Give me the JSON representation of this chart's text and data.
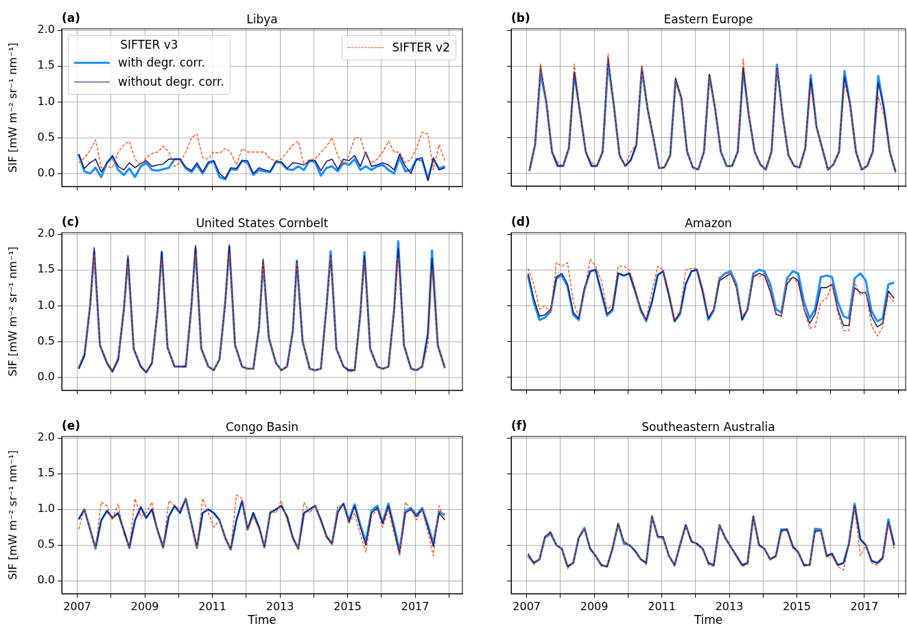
{
  "chart_data": [
    {
      "type": "line",
      "title": "Libya",
      "ylabel": "SIF [mW m⁻² sr⁻¹ nm⁻¹]",
      "annotations": [
        "(a)"
      ],
      "legend": "top left",
      "legend_title": "SIFTER v3",
      "grid": true,
      "tick_labels": "y",
      "xlim": [
        2006.54,
        2018.4
      ],
      "ylim": [
        -0.18,
        2.02
      ],
      "xticks": [
        2007,
        2008,
        2009,
        2010,
        2011,
        2012,
        2013,
        2014,
        2015,
        2016,
        2017,
        2018
      ],
      "yticks": [
        {
          "value": 0,
          "label": "0.0"
        },
        0.5,
        {
          "value": 1,
          "label": "1.0"
        },
        1.5,
        {
          "value": 2,
          "label": "2.0"
        }
      ],
      "x": [
        2007.04,
        2007.21,
        2007.38,
        2007.54,
        2007.71,
        2007.88,
        2008.04,
        2008.21,
        2008.38,
        2008.54,
        2008.71,
        2008.88,
        2009.04,
        2009.21,
        2009.38,
        2009.54,
        2009.71,
        2009.88,
        2010.04,
        2010.21,
        2010.38,
        2010.54,
        2010.71,
        2010.88,
        2011.04,
        2011.21,
        2011.38,
        2011.54,
        2011.71,
        2011.88,
        2012.04,
        2012.21,
        2012.38,
        2012.54,
        2012.71,
        2012.88,
        2013.04,
        2013.21,
        2013.38,
        2013.54,
        2013.71,
        2013.88,
        2014.04,
        2014.21,
        2014.38,
        2014.54,
        2014.71,
        2014.88,
        2015.04,
        2015.21,
        2015.38,
        2015.54,
        2015.71,
        2015.88,
        2016.04,
        2016.21,
        2016.38,
        2016.54,
        2016.71,
        2016.88,
        2017.04,
        2017.21,
        2017.38,
        2017.54,
        2017.71,
        2017.88
      ],
      "series": [
        {
          "name": "with degr. corr.",
          "color": "#1e90ff",
          "line_style": "solid",
          "values": [
            0.27,
            0.03,
            0.0,
            0.08,
            -0.05,
            0.15,
            0.23,
            0.05,
            -0.02,
            0.07,
            -0.05,
            0.1,
            0.15,
            0.05,
            0.04,
            0.06,
            0.08,
            0.2,
            0.2,
            0.07,
            0.02,
            0.12,
            0.0,
            0.14,
            0.17,
            -0.05,
            -0.08,
            0.06,
            0.05,
            0.18,
            0.15,
            -0.02,
            0.05,
            0.03,
            0.02,
            0.16,
            0.15,
            0.06,
            0.05,
            0.1,
            0.05,
            0.18,
            0.16,
            -0.03,
            0.08,
            0.1,
            0.03,
            0.15,
            0.12,
            0.2,
            0.05,
            0.1,
            0.05,
            0.1,
            0.12,
            0.05,
            0.0,
            0.22,
            0.03,
            0.05,
            0.2,
            0.18,
            -0.08,
            0.2,
            0.07,
            0.1
          ]
        },
        {
          "name": "without degr. corr.",
          "color": "#191970",
          "line_style": "solid",
          "values": [
            0.27,
            0.07,
            0.15,
            0.2,
            0.02,
            0.15,
            0.25,
            0.1,
            0.05,
            0.15,
            0.08,
            0.14,
            0.18,
            0.1,
            0.12,
            0.13,
            0.2,
            0.2,
            0.2,
            0.09,
            0.04,
            0.15,
            0.02,
            0.16,
            0.18,
            0.0,
            -0.07,
            0.08,
            0.07,
            0.18,
            0.18,
            0.0,
            0.08,
            0.05,
            0.03,
            0.17,
            0.16,
            0.07,
            0.15,
            0.14,
            0.12,
            0.18,
            0.18,
            0.04,
            0.17,
            0.2,
            0.06,
            0.2,
            0.18,
            0.25,
            0.1,
            0.3,
            0.1,
            0.12,
            0.15,
            0.12,
            0.05,
            0.27,
            0.1,
            0.0,
            0.2,
            0.22,
            -0.1,
            0.22,
            0.05,
            0.08
          ]
        },
        {
          "name": "SIFTER v2",
          "color": "#ff4500",
          "line_style": "dashed",
          "values": [
            0.15,
            0.22,
            0.32,
            0.47,
            0.08,
            0.1,
            0.08,
            0.3,
            0.4,
            0.45,
            0.2,
            0.12,
            0.22,
            0.28,
            0.3,
            0.38,
            0.3,
            0.1,
            0.15,
            0.3,
            0.5,
            0.55,
            0.22,
            0.2,
            0.3,
            0.28,
            0.35,
            0.3,
            0.12,
            0.35,
            0.3,
            0.3,
            0.3,
            0.3,
            0.2,
            0.18,
            0.2,
            0.3,
            0.4,
            0.45,
            0.12,
            0.2,
            0.2,
            0.3,
            0.38,
            0.5,
            0.25,
            0.12,
            0.25,
            0.5,
            0.5,
            0.25,
            0.15,
            0.2,
            0.3,
            0.45,
            0.3,
            0.3,
            0.15,
            0.2,
            0.35,
            0.58,
            0.55,
            0.05,
            0.4,
            0.18
          ]
        }
      ]
    },
    {
      "type": "line",
      "title": "Eastern Europe",
      "annotations": [
        "(b)"
      ],
      "grid": true,
      "tick_labels": false,
      "xlim": [
        2006.54,
        2018.22
      ],
      "ylim": [
        -0.18,
        2.02
      ],
      "xticks": [
        2007,
        2008,
        2009,
        2010,
        2011,
        2012,
        2013,
        2014,
        2015,
        2016,
        2017,
        2018
      ],
      "yticks": [
        0,
        0.5,
        1,
        1.5,
        2
      ],
      "x": [
        2007.08,
        2007.25,
        2007.41,
        2007.58,
        2007.75,
        2007.92,
        2008.08,
        2008.25,
        2008.41,
        2008.58,
        2008.75,
        2008.92,
        2009.08,
        2009.25,
        2009.41,
        2009.58,
        2009.75,
        2009.92,
        2010.08,
        2010.25,
        2010.41,
        2010.58,
        2010.75,
        2010.92,
        2011.08,
        2011.25,
        2011.41,
        2011.58,
        2011.75,
        2011.92,
        2012.08,
        2012.25,
        2012.41,
        2012.58,
        2012.75,
        2012.92,
        2013.08,
        2013.25,
        2013.41,
        2013.58,
        2013.75,
        2013.92,
        2014.08,
        2014.25,
        2014.41,
        2014.58,
        2014.75,
        2014.92,
        2015.08,
        2015.25,
        2015.41,
        2015.58,
        2015.75,
        2015.92,
        2016.08,
        2016.25,
        2016.41,
        2016.58,
        2016.75,
        2016.92,
        2017.08,
        2017.25,
        2017.41,
        2017.58,
        2017.75,
        2017.92
      ],
      "series": [
        {
          "color": "#1e90ff",
          "line_style": "solid",
          "values": [
            0.03,
            0.4,
            1.4,
            1.0,
            0.3,
            0.1,
            0.1,
            0.35,
            1.4,
            0.85,
            0.3,
            0.1,
            0.1,
            0.3,
            1.55,
            0.95,
            0.25,
            0.1,
            0.18,
            0.4,
            1.45,
            0.9,
            0.5,
            0.07,
            0.08,
            0.25,
            1.3,
            1.05,
            0.3,
            0.08,
            0.05,
            0.3,
            1.37,
            0.9,
            0.3,
            0.1,
            0.1,
            0.3,
            1.45,
            0.8,
            0.3,
            0.12,
            0.05,
            0.3,
            1.52,
            0.8,
            0.25,
            0.1,
            0.08,
            0.35,
            1.37,
            0.65,
            0.35,
            0.05,
            0.12,
            0.3,
            1.43,
            0.95,
            0.3,
            0.05,
            0.1,
            0.3,
            1.36,
            0.9,
            0.3,
            0.02
          ]
        },
        {
          "color": "#191970",
          "line_style": "solid",
          "values": [
            0.03,
            0.4,
            1.5,
            1.0,
            0.3,
            0.1,
            0.1,
            0.35,
            1.42,
            0.85,
            0.3,
            0.1,
            0.1,
            0.3,
            1.63,
            0.95,
            0.25,
            0.1,
            0.18,
            0.4,
            1.5,
            0.9,
            0.5,
            0.07,
            0.08,
            0.25,
            1.33,
            1.05,
            0.3,
            0.08,
            0.05,
            0.3,
            1.38,
            0.9,
            0.3,
            0.1,
            0.1,
            0.3,
            1.48,
            0.8,
            0.3,
            0.12,
            0.05,
            0.3,
            1.47,
            0.8,
            0.25,
            0.1,
            0.08,
            0.35,
            1.32,
            0.65,
            0.35,
            0.05,
            0.12,
            0.3,
            1.35,
            0.95,
            0.3,
            0.05,
            0.1,
            0.3,
            1.27,
            0.9,
            0.3,
            0.02
          ]
        },
        {
          "color": "#ff4500",
          "line_style": "dashed",
          "values": [
            0.03,
            0.4,
            1.53,
            1.0,
            0.3,
            0.15,
            0.1,
            0.35,
            1.53,
            0.85,
            0.3,
            0.15,
            0.1,
            0.3,
            1.67,
            0.95,
            0.25,
            0.1,
            0.3,
            0.4,
            1.5,
            0.9,
            0.5,
            0.07,
            0.08,
            0.25,
            1.3,
            1.05,
            0.3,
            0.08,
            0.05,
            0.3,
            1.35,
            0.9,
            0.3,
            0.1,
            0.1,
            0.3,
            1.6,
            0.8,
            0.3,
            0.12,
            0.05,
            0.3,
            1.45,
            0.8,
            0.25,
            0.1,
            0.08,
            0.35,
            1.22,
            0.65,
            0.35,
            0.05,
            0.12,
            0.3,
            1.25,
            0.95,
            0.3,
            0.05,
            0.1,
            0.3,
            1.07,
            0.8,
            0.3,
            0.0
          ]
        }
      ]
    },
    {
      "type": "line",
      "title": "United States Cornbelt",
      "ylabel": "SIF [mW m⁻² sr⁻¹ nm⁻¹]",
      "annotations": [
        "(c)"
      ],
      "grid": true,
      "tick_labels": "y",
      "xlim": [
        2006.54,
        2018.4
      ],
      "ylim": [
        -0.18,
        2.02
      ],
      "xticks": [
        2007,
        2008,
        2009,
        2010,
        2011,
        2012,
        2013,
        2014,
        2015,
        2016,
        2017,
        2018
      ],
      "yticks": [
        {
          "value": 0,
          "label": "0.0"
        },
        0.5,
        {
          "value": 1,
          "label": "1.0"
        },
        1.5,
        {
          "value": 2,
          "label": "2.0"
        }
      ],
      "x": [
        2007.04,
        2007.21,
        2007.38,
        2007.5,
        2007.67,
        2007.88,
        2008.04,
        2008.21,
        2008.38,
        2008.5,
        2008.67,
        2008.88,
        2009.04,
        2009.21,
        2009.38,
        2009.5,
        2009.67,
        2009.88,
        2010.04,
        2010.21,
        2010.38,
        2010.5,
        2010.67,
        2010.88,
        2011.04,
        2011.21,
        2011.38,
        2011.5,
        2011.67,
        2011.88,
        2012.04,
        2012.21,
        2012.38,
        2012.5,
        2012.67,
        2012.88,
        2013.04,
        2013.21,
        2013.38,
        2013.5,
        2013.67,
        2013.88,
        2014.04,
        2014.21,
        2014.38,
        2014.5,
        2014.67,
        2014.88,
        2015.04,
        2015.21,
        2015.38,
        2015.5,
        2015.67,
        2015.88,
        2016.04,
        2016.21,
        2016.38,
        2016.5,
        2016.67,
        2016.88,
        2017.04,
        2017.21,
        2017.38,
        2017.5,
        2017.67,
        2017.88
      ],
      "series": [
        {
          "color": "#1e90ff",
          "line_style": "solid",
          "values": [
            0.12,
            0.3,
            1.0,
            1.75,
            0.45,
            0.2,
            0.08,
            0.25,
            0.95,
            1.65,
            0.4,
            0.15,
            0.07,
            0.2,
            0.95,
            1.75,
            0.42,
            0.15,
            0.15,
            0.15,
            1.0,
            1.8,
            0.4,
            0.15,
            0.1,
            0.25,
            1.05,
            1.82,
            0.45,
            0.15,
            0.12,
            0.12,
            0.7,
            1.6,
            0.55,
            0.2,
            0.1,
            0.15,
            0.65,
            1.63,
            0.5,
            0.12,
            0.1,
            0.12,
            1.0,
            1.76,
            0.4,
            0.15,
            0.1,
            0.1,
            0.9,
            1.75,
            0.4,
            0.15,
            0.12,
            0.15,
            0.95,
            1.9,
            0.45,
            0.12,
            0.1,
            0.15,
            0.62,
            1.77,
            0.45,
            0.13
          ]
        },
        {
          "color": "#191970",
          "line_style": "solid",
          "values": [
            0.12,
            0.3,
            1.0,
            1.81,
            0.45,
            0.2,
            0.08,
            0.25,
            0.95,
            1.7,
            0.4,
            0.15,
            0.07,
            0.2,
            0.95,
            1.76,
            0.42,
            0.15,
            0.15,
            0.15,
            1.0,
            1.84,
            0.4,
            0.15,
            0.1,
            0.25,
            1.05,
            1.85,
            0.45,
            0.15,
            0.12,
            0.12,
            0.7,
            1.65,
            0.55,
            0.2,
            0.1,
            0.15,
            0.65,
            1.62,
            0.5,
            0.12,
            0.1,
            0.12,
            1.0,
            1.7,
            0.4,
            0.15,
            0.1,
            0.1,
            0.9,
            1.7,
            0.4,
            0.15,
            0.12,
            0.15,
            0.95,
            1.8,
            0.45,
            0.12,
            0.1,
            0.15,
            0.6,
            1.66,
            0.45,
            0.13
          ]
        },
        {
          "color": "#ff4500",
          "line_style": "dashed",
          "values": [
            0.15,
            0.35,
            1.0,
            1.72,
            0.45,
            0.22,
            0.1,
            0.28,
            0.95,
            1.6,
            0.4,
            0.17,
            0.08,
            0.22,
            0.95,
            1.65,
            0.42,
            0.15,
            0.15,
            0.17,
            1.0,
            1.72,
            0.4,
            0.15,
            0.1,
            0.25,
            1.05,
            1.73,
            0.45,
            0.15,
            0.12,
            0.12,
            0.7,
            1.6,
            0.55,
            0.2,
            0.1,
            0.15,
            0.65,
            1.6,
            0.5,
            0.12,
            0.1,
            0.12,
            1.0,
            1.68,
            0.4,
            0.15,
            0.07,
            0.1,
            0.9,
            1.6,
            0.4,
            0.15,
            0.12,
            0.15,
            0.95,
            1.68,
            0.45,
            0.12,
            0.1,
            0.15,
            0.45,
            1.5,
            0.45,
            0.13
          ]
        }
      ]
    },
    {
      "type": "line",
      "title": "Amazon",
      "annotations": [
        "(d)"
      ],
      "grid": true,
      "tick_labels": false,
      "xlim": [
        2006.54,
        2018.22
      ],
      "ylim": [
        -0.18,
        2.02
      ],
      "xticks": [
        2007,
        2008,
        2009,
        2010,
        2011,
        2012,
        2013,
        2014,
        2015,
        2016,
        2017,
        2018
      ],
      "yticks": [
        0,
        0.5,
        1,
        1.5,
        2
      ],
      "x": [
        2007.04,
        2007.21,
        2007.38,
        2007.54,
        2007.71,
        2007.88,
        2008.04,
        2008.21,
        2008.38,
        2008.54,
        2008.71,
        2008.88,
        2009.04,
        2009.21,
        2009.38,
        2009.54,
        2009.71,
        2009.88,
        2010.04,
        2010.21,
        2010.38,
        2010.54,
        2010.71,
        2010.88,
        2011.04,
        2011.21,
        2011.38,
        2011.54,
        2011.71,
        2011.88,
        2012.04,
        2012.21,
        2012.38,
        2012.54,
        2012.71,
        2012.88,
        2013.04,
        2013.21,
        2013.38,
        2013.54,
        2013.71,
        2013.88,
        2014.04,
        2014.21,
        2014.38,
        2014.54,
        2014.71,
        2014.88,
        2015.04,
        2015.21,
        2015.38,
        2015.54,
        2015.71,
        2015.88,
        2016.04,
        2016.21,
        2016.38,
        2016.54,
        2016.71,
        2016.88,
        2017.04,
        2017.21,
        2017.38,
        2017.54,
        2017.71,
        2017.88
      ],
      "series": [
        {
          "color": "#1e90ff",
          "line_style": "solid",
          "values": [
            1.42,
            1.05,
            0.8,
            0.83,
            0.92,
            1.38,
            1.42,
            1.27,
            0.87,
            0.8,
            1.22,
            1.48,
            1.5,
            1.18,
            0.86,
            0.93,
            1.45,
            1.42,
            1.45,
            1.2,
            0.93,
            0.78,
            1.05,
            1.43,
            1.48,
            1.15,
            0.78,
            0.88,
            1.3,
            1.48,
            1.5,
            1.2,
            0.8,
            0.93,
            1.38,
            1.45,
            1.48,
            1.3,
            0.8,
            0.95,
            1.45,
            1.5,
            1.48,
            1.3,
            0.95,
            0.9,
            1.38,
            1.48,
            1.45,
            1.05,
            0.82,
            0.95,
            1.4,
            1.42,
            1.4,
            1.05,
            0.85,
            0.82,
            1.38,
            1.45,
            1.35,
            0.92,
            0.78,
            0.82,
            1.3,
            1.32
          ]
        },
        {
          "color": "#191970",
          "line_style": "solid",
          "values": [
            1.45,
            1.1,
            0.85,
            0.87,
            0.95,
            1.4,
            1.45,
            1.3,
            0.9,
            0.82,
            1.25,
            1.48,
            1.5,
            1.2,
            0.88,
            0.95,
            1.45,
            1.42,
            1.45,
            1.2,
            0.95,
            0.8,
            1.05,
            1.42,
            1.48,
            1.15,
            0.78,
            0.9,
            1.3,
            1.48,
            1.5,
            1.2,
            0.82,
            0.95,
            1.35,
            1.4,
            1.45,
            1.25,
            0.8,
            0.95,
            1.4,
            1.45,
            1.42,
            1.2,
            0.88,
            0.85,
            1.3,
            1.4,
            1.35,
            0.95,
            0.75,
            0.88,
            1.25,
            1.25,
            1.3,
            0.95,
            0.72,
            0.72,
            1.25,
            1.18,
            1.18,
            0.85,
            0.7,
            0.75,
            1.2,
            1.1
          ]
        },
        {
          "color": "#ff4500",
          "line_style": "dashed",
          "values": [
            1.52,
            1.3,
            0.95,
            1.0,
            0.9,
            1.6,
            1.55,
            1.6,
            1.05,
            0.85,
            1.2,
            1.65,
            1.55,
            1.35,
            0.95,
            1.0,
            1.55,
            1.55,
            1.5,
            1.25,
            0.9,
            0.82,
            1.2,
            1.55,
            1.5,
            1.2,
            0.8,
            0.92,
            1.5,
            1.52,
            1.52,
            1.25,
            0.85,
            0.95,
            1.4,
            1.45,
            1.45,
            1.25,
            0.85,
            0.95,
            1.45,
            1.4,
            1.45,
            1.25,
            0.9,
            0.85,
            1.35,
            1.4,
            1.3,
            0.95,
            0.68,
            0.7,
            1.05,
            1.1,
            1.3,
            0.9,
            0.65,
            0.65,
            1.32,
            1.15,
            1.2,
            0.72,
            0.57,
            0.7,
            1.15,
            1.05
          ]
        }
      ]
    },
    {
      "type": "line",
      "title": "Congo Basin",
      "xlabel": "Time",
      "ylabel": "SIF [mW m⁻² sr⁻¹ nm⁻¹]",
      "annotations": [
        "(e)"
      ],
      "grid": true,
      "xlim": [
        2006.54,
        2018.4
      ],
      "ylim": [
        -0.18,
        2.02
      ],
      "xticks": [
        2007,
        {
          "value": 2008,
          "label": null
        },
        2009,
        {
          "value": 2010,
          "label": null
        },
        2011,
        {
          "value": 2012,
          "label": null
        },
        2013,
        {
          "value": 2014,
          "label": null
        },
        2015,
        {
          "value": 2016,
          "label": null
        },
        2017,
        {
          "value": 2018,
          "label": null
        }
      ],
      "yticks": [
        {
          "value": 0,
          "label": "0.0"
        },
        0.5,
        {
          "value": 1,
          "label": "1.0"
        },
        1.5,
        {
          "value": 2,
          "label": "2.0"
        }
      ],
      "x": [
        2007.04,
        2007.21,
        2007.38,
        2007.54,
        2007.71,
        2007.88,
        2008.04,
        2008.21,
        2008.38,
        2008.54,
        2008.71,
        2008.88,
        2009.04,
        2009.21,
        2009.38,
        2009.54,
        2009.71,
        2009.88,
        2010.04,
        2010.21,
        2010.38,
        2010.54,
        2010.71,
        2010.88,
        2011.04,
        2011.21,
        2011.38,
        2011.54,
        2011.71,
        2011.88,
        2012.04,
        2012.21,
        2012.38,
        2012.54,
        2012.71,
        2012.88,
        2013.04,
        2013.21,
        2013.38,
        2013.54,
        2013.71,
        2013.88,
        2014.04,
        2014.21,
        2014.38,
        2014.54,
        2014.71,
        2014.88,
        2015.04,
        2015.21,
        2015.38,
        2015.54,
        2015.71,
        2015.88,
        2016.04,
        2016.21,
        2016.38,
        2016.54,
        2016.71,
        2016.88,
        2017.04,
        2017.21,
        2017.38,
        2017.54,
        2017.71,
        2017.88
      ],
      "series": [
        {
          "color": "#1e90ff",
          "line_style": "solid",
          "values": [
            0.86,
            1.0,
            0.72,
            0.45,
            0.85,
            0.98,
            0.88,
            0.95,
            0.7,
            0.46,
            0.85,
            1.03,
            0.88,
            1.0,
            0.7,
            0.47,
            0.9,
            1.05,
            0.95,
            1.15,
            0.8,
            0.46,
            0.95,
            1.0,
            0.95,
            0.85,
            0.6,
            0.44,
            0.85,
            1.12,
            0.72,
            0.95,
            0.75,
            0.47,
            0.95,
            1.0,
            1.05,
            0.9,
            0.6,
            0.45,
            0.95,
            1.0,
            1.05,
            0.85,
            0.62,
            0.52,
            0.98,
            1.08,
            0.85,
            1.07,
            0.78,
            0.55,
            0.98,
            1.05,
            0.82,
            1.08,
            0.75,
            0.42,
            0.98,
            1.02,
            0.92,
            1.02,
            0.78,
            0.52,
            0.97,
            0.92
          ]
        },
        {
          "color": "#191970",
          "line_style": "solid",
          "values": [
            0.86,
            1.0,
            0.72,
            0.47,
            0.85,
            0.98,
            0.88,
            0.95,
            0.7,
            0.47,
            0.85,
            1.03,
            0.88,
            1.0,
            0.7,
            0.47,
            0.9,
            1.05,
            0.95,
            1.15,
            0.8,
            0.47,
            0.95,
            1.0,
            0.95,
            0.85,
            0.6,
            0.44,
            0.85,
            1.12,
            0.72,
            0.95,
            0.75,
            0.47,
            0.95,
            1.0,
            1.05,
            0.9,
            0.6,
            0.45,
            0.95,
            1.0,
            1.05,
            0.85,
            0.62,
            0.52,
            0.95,
            1.08,
            0.82,
            1.05,
            0.75,
            0.5,
            0.95,
            1.02,
            0.8,
            1.05,
            0.72,
            0.38,
            0.95,
            1.0,
            0.9,
            1.0,
            0.75,
            0.48,
            0.95,
            0.85
          ]
        },
        {
          "color": "#ff4500",
          "line_style": "dashed",
          "values": [
            0.72,
            1.0,
            0.72,
            0.47,
            1.1,
            1.05,
            0.85,
            1.08,
            0.65,
            0.48,
            1.15,
            0.9,
            0.95,
            1.1,
            0.68,
            0.45,
            1.12,
            1.05,
            1.0,
            1.15,
            0.78,
            0.45,
            1.15,
            0.95,
            0.75,
            0.85,
            0.6,
            0.44,
            1.2,
            1.15,
            0.7,
            0.9,
            0.72,
            0.46,
            0.98,
            0.95,
            1.12,
            0.85,
            0.58,
            0.45,
            1.1,
            0.95,
            1.05,
            0.82,
            0.6,
            0.5,
            1.05,
            1.05,
            0.8,
            0.95,
            0.65,
            0.4,
            0.9,
            1.0,
            0.75,
            1.0,
            0.65,
            0.35,
            1.1,
            1.0,
            0.85,
            1.0,
            0.68,
            0.35,
            1.05,
            0.85
          ]
        }
      ]
    },
    {
      "type": "line",
      "title": "Southeastern Australia",
      "xlabel": "Time",
      "annotations": [
        "(f)"
      ],
      "grid": true,
      "tick_labels": "x",
      "xlim": [
        2006.54,
        2018.22
      ],
      "ylim": [
        -0.18,
        2.02
      ],
      "xticks": [
        2007,
        {
          "value": 2008,
          "label": null
        },
        2009,
        {
          "value": 2010,
          "label": null
        },
        2011,
        {
          "value": 2012,
          "label": null
        },
        2013,
        {
          "value": 2014,
          "label": null
        },
        2015,
        {
          "value": 2016,
          "label": null
        },
        2017,
        {
          "value": 2018,
          "label": null
        }
      ],
      "yticks": [
        0,
        0.5,
        1,
        1.5,
        2
      ],
      "x": [
        2007.04,
        2007.21,
        2007.38,
        2007.54,
        2007.71,
        2007.88,
        2008.04,
        2008.21,
        2008.38,
        2008.54,
        2008.71,
        2008.88,
        2009.04,
        2009.21,
        2009.38,
        2009.54,
        2009.71,
        2009.88,
        2010.04,
        2010.21,
        2010.38,
        2010.54,
        2010.71,
        2010.88,
        2011.04,
        2011.21,
        2011.38,
        2011.54,
        2011.71,
        2011.88,
        2012.04,
        2012.21,
        2012.38,
        2012.54,
        2012.71,
        2012.88,
        2013.04,
        2013.21,
        2013.38,
        2013.54,
        2013.71,
        2013.88,
        2014.04,
        2014.21,
        2014.38,
        2014.54,
        2014.71,
        2014.88,
        2015.04,
        2015.21,
        2015.38,
        2015.54,
        2015.71,
        2015.88,
        2016.04,
        2016.21,
        2016.38,
        2016.54,
        2016.71,
        2016.88,
        2017.04,
        2017.21,
        2017.38,
        2017.54,
        2017.71,
        2017.88
      ],
      "series": [
        {
          "color": "#1e90ff",
          "line_style": "solid",
          "values": [
            0.35,
            0.25,
            0.3,
            0.6,
            0.66,
            0.5,
            0.45,
            0.2,
            0.25,
            0.6,
            0.74,
            0.45,
            0.35,
            0.22,
            0.2,
            0.45,
            0.8,
            0.52,
            0.5,
            0.42,
            0.3,
            0.25,
            0.9,
            0.62,
            0.6,
            0.35,
            0.22,
            0.5,
            0.78,
            0.55,
            0.52,
            0.45,
            0.25,
            0.22,
            0.78,
            0.6,
            0.48,
            0.35,
            0.22,
            0.25,
            0.9,
            0.5,
            0.45,
            0.3,
            0.35,
            0.72,
            0.72,
            0.48,
            0.4,
            0.22,
            0.22,
            0.73,
            0.72,
            0.35,
            0.38,
            0.22,
            0.25,
            0.52,
            1.08,
            0.58,
            0.5,
            0.28,
            0.25,
            0.32,
            0.86,
            0.5
          ]
        },
        {
          "color": "#191970",
          "line_style": "solid",
          "values": [
            0.38,
            0.25,
            0.3,
            0.62,
            0.68,
            0.5,
            0.45,
            0.2,
            0.25,
            0.6,
            0.72,
            0.45,
            0.35,
            0.22,
            0.2,
            0.45,
            0.8,
            0.55,
            0.5,
            0.42,
            0.3,
            0.25,
            0.9,
            0.62,
            0.62,
            0.35,
            0.22,
            0.5,
            0.78,
            0.55,
            0.52,
            0.45,
            0.25,
            0.22,
            0.78,
            0.6,
            0.48,
            0.35,
            0.22,
            0.25,
            0.9,
            0.5,
            0.45,
            0.3,
            0.35,
            0.7,
            0.72,
            0.48,
            0.4,
            0.22,
            0.22,
            0.7,
            0.7,
            0.35,
            0.38,
            0.22,
            0.25,
            0.5,
            1.05,
            0.58,
            0.5,
            0.28,
            0.25,
            0.32,
            0.82,
            0.5
          ]
        },
        {
          "color": "#ff4500",
          "line_style": "dashed",
          "values": [
            0.36,
            0.23,
            0.3,
            0.6,
            0.7,
            0.5,
            0.45,
            0.17,
            0.25,
            0.62,
            0.72,
            0.47,
            0.35,
            0.2,
            0.22,
            0.47,
            0.8,
            0.55,
            0.5,
            0.4,
            0.3,
            0.22,
            0.92,
            0.6,
            0.6,
            0.35,
            0.2,
            0.5,
            0.76,
            0.58,
            0.5,
            0.45,
            0.22,
            0.2,
            0.78,
            0.6,
            0.48,
            0.33,
            0.2,
            0.23,
            0.88,
            0.52,
            0.45,
            0.3,
            0.33,
            0.68,
            0.7,
            0.45,
            0.4,
            0.2,
            0.22,
            0.68,
            0.7,
            0.33,
            0.35,
            0.2,
            0.15,
            0.5,
            1.02,
            0.35,
            0.5,
            0.25,
            0.22,
            0.3,
            0.8,
            0.45
          ]
        }
      ]
    }
  ]
}
